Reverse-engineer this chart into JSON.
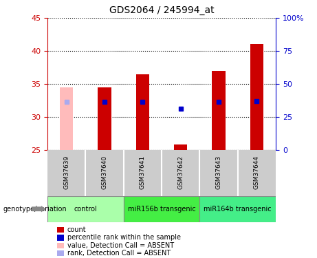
{
  "title": "GDS2064 / 245994_at",
  "samples": [
    "GSM37639",
    "GSM37640",
    "GSM37641",
    "GSM37642",
    "GSM37643",
    "GSM37644"
  ],
  "groups": [
    {
      "label": "control",
      "color": "#aaffaa"
    },
    {
      "label": "miR156b transgenic",
      "color": "#44ee44"
    },
    {
      "label": "miR164b transgenic",
      "color": "#44ee88"
    }
  ],
  "group_sample_counts": [
    2,
    2,
    2
  ],
  "bar_values": [
    34.5,
    34.5,
    36.4,
    25.8,
    37.0,
    41.1
  ],
  "bar_colors": [
    "#ffbbbb",
    "#cc0000",
    "#cc0000",
    "#cc0000",
    "#cc0000",
    "#cc0000"
  ],
  "bar_base": 25.0,
  "dot_values": [
    32.3,
    32.3,
    32.3,
    31.2,
    32.3,
    32.4
  ],
  "dot_colors": [
    "#aaaaee",
    "#0000cc",
    "#0000cc",
    "#0000cc",
    "#0000cc",
    "#0000cc"
  ],
  "ylim": [
    25,
    45
  ],
  "yticks_left": [
    25,
    30,
    35,
    40,
    45
  ],
  "yticks_right_labels": [
    "0",
    "25",
    "50",
    "75",
    "100%"
  ],
  "yticks_right_pos": [
    25,
    30,
    35,
    40,
    45
  ],
  "left_axis_color": "#cc0000",
  "right_axis_color": "#0000cc",
  "legend_items": [
    {
      "label": "count",
      "color": "#cc0000"
    },
    {
      "label": "percentile rank within the sample",
      "color": "#0000cc"
    },
    {
      "label": "value, Detection Call = ABSENT",
      "color": "#ffbbbb"
    },
    {
      "label": "rank, Detection Call = ABSENT",
      "color": "#aaaaee"
    }
  ],
  "genotype_label": "genotype/variation",
  "sample_bg_color": "#cccccc",
  "bar_width": 0.35
}
